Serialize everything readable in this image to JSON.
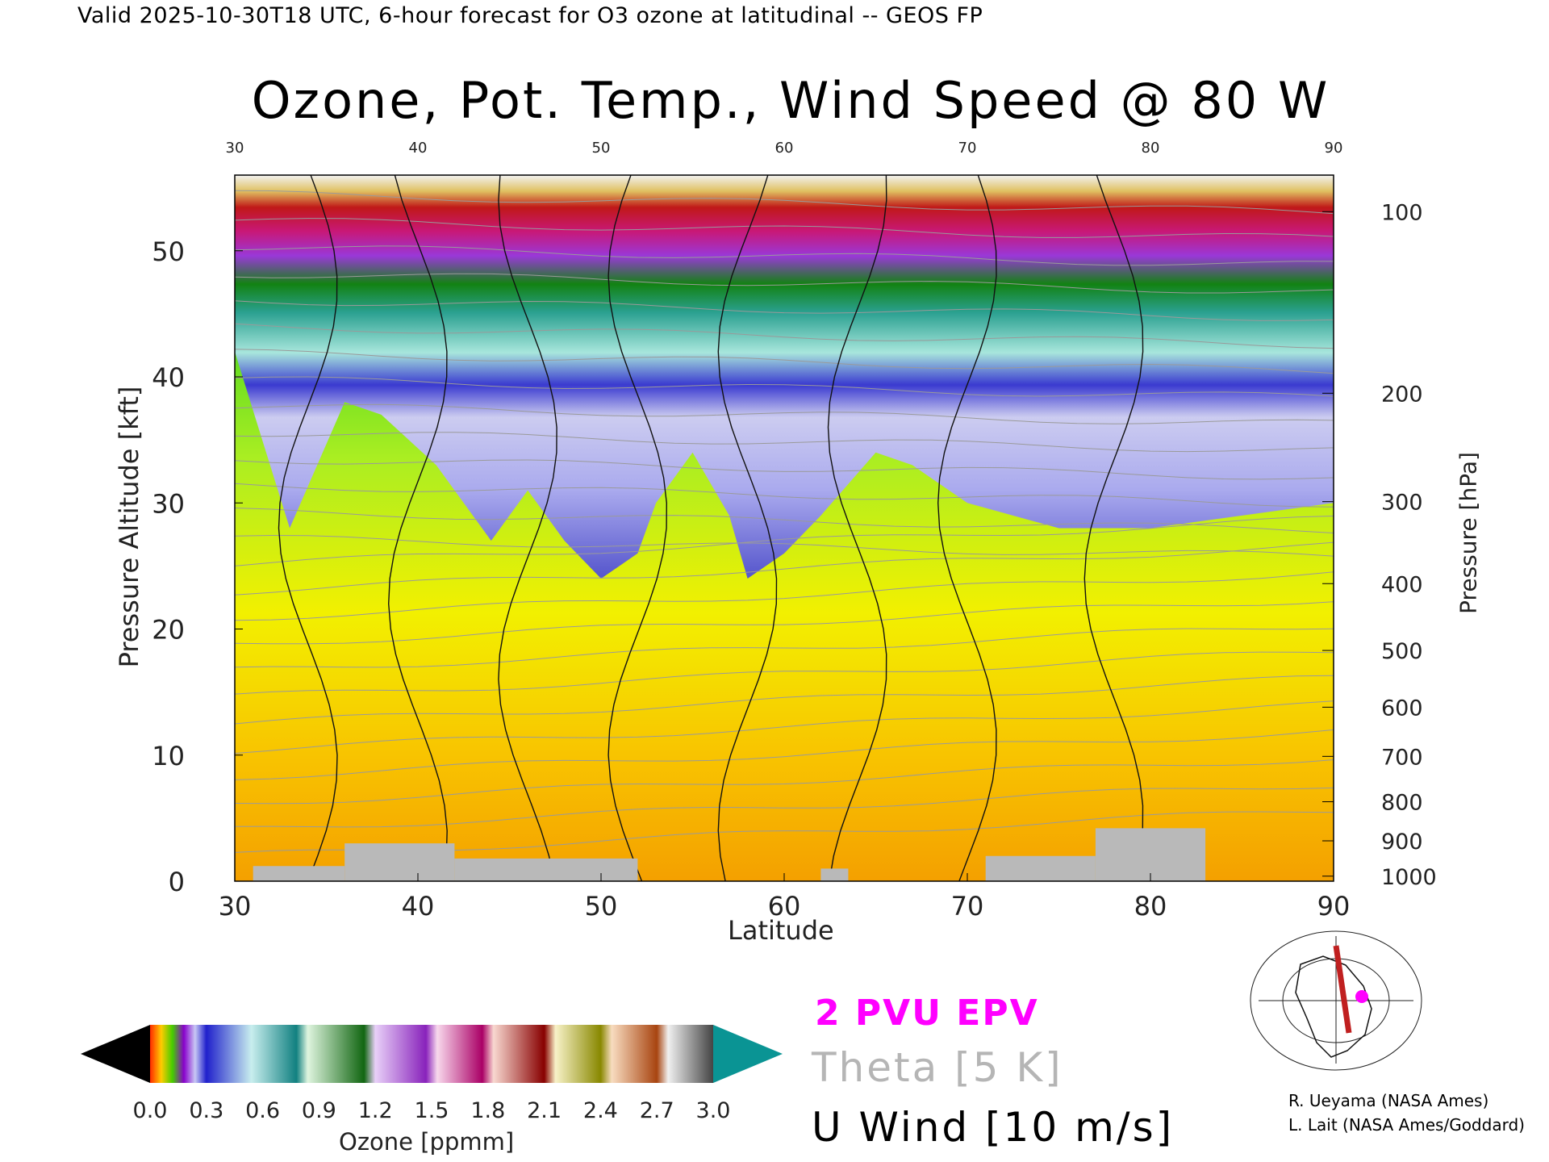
{
  "header": "Valid 2025-10-30T18 UTC, 6-hour forecast for O3 ozone at latitudinal -- GEOS FP",
  "chart_data": {
    "type": "heatmap",
    "title": "Ozone, Pot. Temp., Wind Speed @ 80 W",
    "xlabel": "Latitude",
    "ylabel": "Pressure Altitude [kft]",
    "y2label": "Pressure [hPa]",
    "xlim": [
      30,
      90
    ],
    "ylim": [
      0,
      56
    ],
    "x_ticks": [
      "30",
      "40",
      "50",
      "60",
      "70",
      "80",
      "90"
    ],
    "y_ticks": [
      "0",
      "10",
      "20",
      "30",
      "40",
      "50"
    ],
    "pressure_ticks": [
      {
        "label": "100",
        "kft": 53.1
      },
      {
        "label": "200",
        "kft": 38.7
      },
      {
        "label": "300",
        "kft": 30.1
      },
      {
        "label": "400",
        "kft": 23.6
      },
      {
        "label": "500",
        "kft": 18.3
      },
      {
        "label": "600",
        "kft": 13.8
      },
      {
        "label": "700",
        "kft": 9.9
      },
      {
        "label": "800",
        "kft": 6.3
      },
      {
        "label": "900",
        "kft": 3.2
      },
      {
        "label": "1000",
        "kft": 0.4
      }
    ],
    "tropopause_kft": [
      [
        30,
        42
      ],
      [
        33,
        28
      ],
      [
        36,
        38
      ],
      [
        38,
        37
      ],
      [
        41,
        33
      ],
      [
        44,
        27
      ],
      [
        46,
        31
      ],
      [
        48,
        27
      ],
      [
        50,
        24
      ],
      [
        52,
        26
      ],
      [
        53,
        30
      ],
      [
        55,
        34
      ],
      [
        57,
        29
      ],
      [
        58,
        24
      ],
      [
        60,
        26
      ],
      [
        62,
        29
      ],
      [
        65,
        34
      ],
      [
        67,
        33
      ],
      [
        70,
        30
      ],
      [
        75,
        28
      ],
      [
        80,
        28
      ],
      [
        85,
        29
      ],
      [
        90,
        30
      ]
    ],
    "colorbar": {
      "label": "Ozone [ppmm]",
      "ticks": [
        "0.0",
        "0.3",
        "0.6",
        "0.9",
        "1.2",
        "1.5",
        "1.8",
        "2.1",
        "2.4",
        "2.7",
        "3.0"
      ],
      "range": [
        0.0,
        3.0
      ]
    },
    "legend": [
      {
        "label": "2 PVU EPV",
        "color": "#ff00ff"
      },
      {
        "label": "Theta [5 K]",
        "color": "#b5b5b5"
      },
      {
        "label": "U Wind [10 m/s]",
        "color": "#000000"
      }
    ]
  },
  "credits": [
    "R. Ueyama (NASA Ames)",
    "L. Lait (NASA Ames/Goddard)"
  ]
}
